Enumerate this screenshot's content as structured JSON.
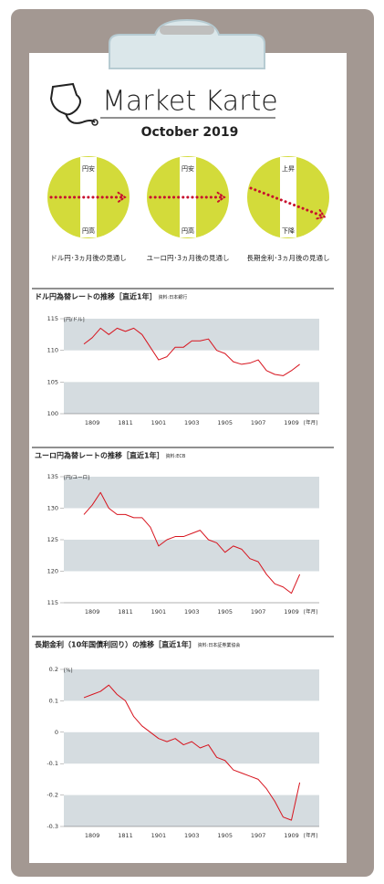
{
  "header": {
    "title": "Market Karte",
    "date": "October 2019"
  },
  "outlook": [
    {
      "up": "円安",
      "down": "円高",
      "caption": "ドル円･3ヵ月後の見通し"
    },
    {
      "up": "円安",
      "down": "円高",
      "caption": "ユーロ円･3ヵ月後の見通し"
    },
    {
      "up": "上昇",
      "down": "下降",
      "caption": "長期金利･3ヵ月後の見通し"
    }
  ],
  "chart_data": [
    {
      "type": "line",
      "title": "ドル円為替レートの推移［直近1年］",
      "source": "資料:日本銀行",
      "y_unit": "[円/ドル]",
      "x_unit": "[年月]",
      "color": "#d7141e",
      "categories": [
        null,
        "1809",
        null,
        null,
        null,
        "1811",
        null,
        null,
        null,
        "1901",
        null,
        null,
        null,
        "1903",
        null,
        null,
        null,
        "1905",
        null,
        null,
        null,
        "1907",
        null,
        null,
        null,
        "1909",
        null
      ],
      "values": [
        111.0,
        112.0,
        113.5,
        112.5,
        113.5,
        113.0,
        113.5,
        112.5,
        110.5,
        108.5,
        109.0,
        110.5,
        110.5,
        111.5,
        111.5,
        111.8,
        110.0,
        109.5,
        108.2,
        107.8,
        108.0,
        108.5,
        106.8,
        106.2,
        106.0,
        106.8,
        107.8
      ],
      "ylim": [
        100,
        115
      ],
      "yticks": [
        100,
        105,
        110,
        115
      ]
    },
    {
      "type": "line",
      "title": "ユーロ円為替レートの推移［直近1年］",
      "source": "資料:ECB",
      "y_unit": "[円/ユーロ]",
      "x_unit": "[年月]",
      "color": "#d7141e",
      "categories": [
        null,
        "1809",
        null,
        null,
        null,
        "1811",
        null,
        null,
        null,
        "1901",
        null,
        null,
        null,
        "1903",
        null,
        null,
        null,
        "1905",
        null,
        null,
        null,
        "1907",
        null,
        null,
        null,
        "1909",
        null
      ],
      "values": [
        129,
        130.5,
        132.5,
        130,
        129,
        129,
        128.5,
        128.5,
        127,
        124,
        125,
        125.5,
        125.5,
        126,
        126.5,
        125,
        124.5,
        123,
        124,
        123.5,
        122,
        121.5,
        119.5,
        118,
        117.5,
        116.5,
        119.5
      ],
      "ylim": [
        115,
        135
      ],
      "yticks": [
        115,
        120,
        125,
        130,
        135
      ]
    },
    {
      "type": "line",
      "title": "長期金利（10年国債利回り）の推移［直近1年］",
      "source": "資料:日本証券業協会",
      "y_unit": "[%]",
      "x_unit": "[年月]",
      "color": "#d7141e",
      "categories": [
        null,
        "1809",
        null,
        null,
        null,
        "1811",
        null,
        null,
        null,
        "1901",
        null,
        null,
        null,
        "1903",
        null,
        null,
        null,
        "1905",
        null,
        null,
        null,
        "1907",
        null,
        null,
        null,
        "1909",
        null
      ],
      "values": [
        0.11,
        0.12,
        0.13,
        0.15,
        0.12,
        0.1,
        0.05,
        0.02,
        0.0,
        -0.02,
        -0.03,
        -0.02,
        -0.04,
        -0.03,
        -0.05,
        -0.04,
        -0.08,
        -0.09,
        -0.12,
        -0.13,
        -0.14,
        -0.15,
        -0.18,
        -0.22,
        -0.27,
        -0.28,
        -0.16
      ],
      "ylim": [
        -0.3,
        0.2
      ],
      "yticks": [
        -0.3,
        -0.2,
        -0.1,
        0,
        0.1,
        0.2
      ]
    }
  ]
}
